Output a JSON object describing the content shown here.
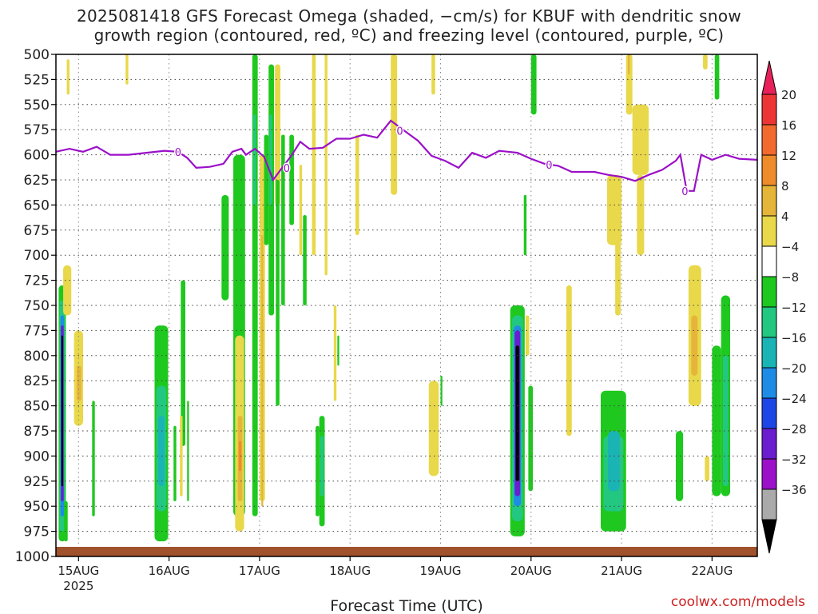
{
  "title": {
    "line1": "2025081418 GFS Forecast Omega (shaded, −cm/s) for KBUF with dendritic snow",
    "line2": "growth region (contoured, red, ºC) and freezing level (contoured, purple, ºC)"
  },
  "credit": "coolwx.com/models",
  "chart_data": {
    "type": "heatmap",
    "xlabel": "Forecast Time (UTC)",
    "ylabel": "",
    "x_range_days": [
      14.75,
      22.5
    ],
    "x_ticks": [
      {
        "day": 15,
        "label": "15AUG",
        "sub": "2025"
      },
      {
        "day": 16,
        "label": "16AUG",
        "sub": ""
      },
      {
        "day": 17,
        "label": "17AUG",
        "sub": ""
      },
      {
        "day": 18,
        "label": "18AUG",
        "sub": ""
      },
      {
        "day": 19,
        "label": "19AUG",
        "sub": ""
      },
      {
        "day": 20,
        "label": "20AUG",
        "sub": ""
      },
      {
        "day": 21,
        "label": "21AUG",
        "sub": ""
      },
      {
        "day": 22,
        "label": "22AUG",
        "sub": ""
      }
    ],
    "y_ticks": [
      500,
      525,
      550,
      575,
      600,
      625,
      650,
      675,
      700,
      725,
      750,
      775,
      800,
      825,
      850,
      875,
      900,
      925,
      950,
      975,
      1000
    ],
    "y_range": [
      500,
      1000
    ],
    "colorbar": {
      "labels": [
        "20",
        "16",
        "12",
        "8",
        "4",
        "−4",
        "−8",
        "−12",
        "−16",
        "−20",
        "−24",
        "−28",
        "−32",
        "−36"
      ],
      "colors": [
        "#e8205a",
        "#ee3535",
        "#f26a2e",
        "#ef8c2a",
        "#e5b53a",
        "#e8d84a",
        "#ffffff",
        "#1ec81e",
        "#22c880",
        "#1ab4b4",
        "#1e8ce6",
        "#1e46e6",
        "#6a1ecf",
        "#9b10c8",
        "#aaaaaa",
        "#000000"
      ]
    },
    "freezing_level": {
      "color": "#9b10c8",
      "label": "0",
      "points": [
        [
          14.75,
          597
        ],
        [
          14.9,
          594
        ],
        [
          15.05,
          597
        ],
        [
          15.2,
          592
        ],
        [
          15.35,
          600
        ],
        [
          15.55,
          600
        ],
        [
          15.75,
          598
        ],
        [
          15.95,
          596
        ],
        [
          16.1,
          597
        ],
        [
          16.2,
          603
        ],
        [
          16.3,
          613
        ],
        [
          16.45,
          612
        ],
        [
          16.6,
          609
        ],
        [
          16.7,
          597
        ],
        [
          16.8,
          594
        ],
        [
          16.85,
          600
        ],
        [
          16.95,
          594
        ],
        [
          17.05,
          602
        ],
        [
          17.15,
          625
        ],
        [
          17.25,
          613
        ],
        [
          17.35,
          601
        ],
        [
          17.45,
          587
        ],
        [
          17.55,
          594
        ],
        [
          17.7,
          593
        ],
        [
          17.85,
          584
        ],
        [
          18.0,
          584
        ],
        [
          18.15,
          580
        ],
        [
          18.3,
          583
        ],
        [
          18.45,
          566
        ],
        [
          18.6,
          576
        ],
        [
          18.75,
          586
        ],
        [
          18.9,
          601
        ],
        [
          19.05,
          606
        ],
        [
          19.2,
          613
        ],
        [
          19.35,
          598
        ],
        [
          19.5,
          603
        ],
        [
          19.65,
          596
        ],
        [
          19.85,
          598
        ],
        [
          20.0,
          604
        ],
        [
          20.15,
          609
        ],
        [
          20.3,
          611
        ],
        [
          20.45,
          617
        ],
        [
          20.7,
          617
        ],
        [
          20.85,
          620
        ],
        [
          21.0,
          622
        ],
        [
          21.15,
          626
        ],
        [
          21.3,
          620
        ],
        [
          21.45,
          615
        ],
        [
          21.6,
          606
        ],
        [
          21.65,
          600
        ],
        [
          21.72,
          636
        ],
        [
          21.8,
          636
        ],
        [
          21.88,
          600
        ],
        [
          22.0,
          605
        ],
        [
          22.15,
          600
        ],
        [
          22.3,
          604
        ],
        [
          22.5,
          605
        ]
      ]
    },
    "omega_regions": [
      {
        "x0": 14.78,
        "x1": 14.86,
        "p0": 730,
        "p1": 985,
        "value": -8
      },
      {
        "x0": 14.79,
        "x1": 14.85,
        "p0": 745,
        "p1": 975,
        "value": -12
      },
      {
        "x0": 14.8,
        "x1": 14.84,
        "p0": 760,
        "p1": 960,
        "value": -20
      },
      {
        "x0": 14.805,
        "x1": 14.835,
        "p0": 770,
        "p1": 945,
        "value": -28
      },
      {
        "x0": 14.81,
        "x1": 14.83,
        "p0": 780,
        "p1": 930,
        "value": -36
      },
      {
        "x0": 14.84,
        "x1": 14.88,
        "p0": 945,
        "p1": 985,
        "value": -8
      },
      {
        "x0": 14.83,
        "x1": 14.92,
        "p0": 710,
        "p1": 760,
        "value": 4
      },
      {
        "x0": 14.95,
        "x1": 15.05,
        "p0": 775,
        "p1": 870,
        "value": 4
      },
      {
        "x0": 14.98,
        "x1": 15.03,
        "p0": 810,
        "p1": 845,
        "value": 8
      },
      {
        "x0": 14.87,
        "x1": 14.9,
        "p0": 505,
        "p1": 540,
        "value": 4
      },
      {
        "x0": 15.15,
        "x1": 15.18,
        "p0": 845,
        "p1": 960,
        "value": -8
      },
      {
        "x0": 15.52,
        "x1": 15.55,
        "p0": 500,
        "p1": 530,
        "value": 4
      },
      {
        "x0": 15.84,
        "x1": 15.99,
        "p0": 770,
        "p1": 985,
        "value": -8
      },
      {
        "x0": 15.86,
        "x1": 15.97,
        "p0": 830,
        "p1": 955,
        "value": -12
      },
      {
        "x0": 15.88,
        "x1": 15.95,
        "p0": 860,
        "p1": 930,
        "value": -16
      },
      {
        "x0": 16.13,
        "x1": 16.18,
        "p0": 725,
        "p1": 890,
        "value": -8
      },
      {
        "x0": 16.12,
        "x1": 16.15,
        "p0": 860,
        "p1": 940,
        "value": 4
      },
      {
        "x0": 16.05,
        "x1": 16.08,
        "p0": 870,
        "p1": 945,
        "value": -8
      },
      {
        "x0": 16.2,
        "x1": 16.22,
        "p0": 845,
        "p1": 945,
        "value": -8
      },
      {
        "x0": 16.58,
        "x1": 16.66,
        "p0": 640,
        "p1": 745,
        "value": -8
      },
      {
        "x0": 16.71,
        "x1": 16.84,
        "p0": 600,
        "p1": 960,
        "value": -8
      },
      {
        "x0": 16.73,
        "x1": 16.83,
        "p0": 780,
        "p1": 975,
        "value": 4
      },
      {
        "x0": 16.76,
        "x1": 16.81,
        "p0": 860,
        "p1": 945,
        "value": 8
      },
      {
        "x0": 16.77,
        "x1": 16.8,
        "p0": 885,
        "p1": 915,
        "value": 12
      },
      {
        "x0": 16.92,
        "x1": 16.98,
        "p0": 500,
        "p1": 960,
        "value": -8
      },
      {
        "x0": 16.93,
        "x1": 16.96,
        "p0": 560,
        "p1": 650,
        "value": -12
      },
      {
        "x0": 17.0,
        "x1": 17.06,
        "p0": 600,
        "p1": 945,
        "value": 4
      },
      {
        "x0": 17.02,
        "x1": 17.04,
        "p0": 680,
        "p1": 950,
        "value": 8
      },
      {
        "x0": 17.05,
        "x1": 17.1,
        "p0": 580,
        "p1": 690,
        "value": -8
      },
      {
        "x0": 17.1,
        "x1": 17.16,
        "p0": 510,
        "p1": 760,
        "value": -8
      },
      {
        "x0": 17.11,
        "x1": 17.14,
        "p0": 560,
        "p1": 650,
        "value": -12
      },
      {
        "x0": 17.17,
        "x1": 17.23,
        "p0": 510,
        "p1": 650,
        "value": 4
      },
      {
        "x0": 17.18,
        "x1": 17.22,
        "p0": 625,
        "p1": 850,
        "value": -8
      },
      {
        "x0": 17.24,
        "x1": 17.28,
        "p0": 580,
        "p1": 750,
        "value": -8
      },
      {
        "x0": 17.33,
        "x1": 17.38,
        "p0": 580,
        "p1": 670,
        "value": -8
      },
      {
        "x0": 17.44,
        "x1": 17.47,
        "p0": 610,
        "p1": 700,
        "value": 4
      },
      {
        "x0": 17.48,
        "x1": 17.52,
        "p0": 660,
        "p1": 750,
        "value": -8
      },
      {
        "x0": 17.58,
        "x1": 17.62,
        "p0": 500,
        "p1": 700,
        "value": 4
      },
      {
        "x0": 17.62,
        "x1": 17.66,
        "p0": 870,
        "p1": 960,
        "value": -8
      },
      {
        "x0": 17.66,
        "x1": 17.72,
        "p0": 860,
        "p1": 970,
        "value": -8
      },
      {
        "x0": 17.67,
        "x1": 17.71,
        "p0": 880,
        "p1": 940,
        "value": -12
      },
      {
        "x0": 17.72,
        "x1": 17.75,
        "p0": 500,
        "p1": 720,
        "value": 4
      },
      {
        "x0": 17.82,
        "x1": 17.85,
        "p0": 750,
        "p1": 845,
        "value": 4
      },
      {
        "x0": 17.86,
        "x1": 17.88,
        "p0": 780,
        "p1": 810,
        "value": -8
      },
      {
        "x0": 18.06,
        "x1": 18.1,
        "p0": 580,
        "p1": 680,
        "value": 4
      },
      {
        "x0": 18.45,
        "x1": 18.52,
        "p0": 500,
        "p1": 640,
        "value": 4
      },
      {
        "x0": 18.9,
        "x1": 18.94,
        "p0": 500,
        "p1": 540,
        "value": 4
      },
      {
        "x0": 18.87,
        "x1": 18.98,
        "p0": 825,
        "p1": 920,
        "value": 4
      },
      {
        "x0": 19.0,
        "x1": 19.02,
        "p0": 820,
        "p1": 850,
        "value": -8
      },
      {
        "x0": 19.77,
        "x1": 19.93,
        "p0": 750,
        "p1": 980,
        "value": -8
      },
      {
        "x0": 19.79,
        "x1": 19.91,
        "p0": 760,
        "p1": 965,
        "value": -12
      },
      {
        "x0": 19.81,
        "x1": 19.89,
        "p0": 770,
        "p1": 950,
        "value": -20
      },
      {
        "x0": 19.82,
        "x1": 19.88,
        "p0": 775,
        "p1": 940,
        "value": -28
      },
      {
        "x0": 19.83,
        "x1": 19.87,
        "p0": 790,
        "p1": 925,
        "value": -36
      },
      {
        "x0": 19.94,
        "x1": 19.98,
        "p0": 760,
        "p1": 800,
        "value": 4
      },
      {
        "x0": 19.92,
        "x1": 19.95,
        "p0": 640,
        "p1": 700,
        "value": -8
      },
      {
        "x0": 20.0,
        "x1": 20.06,
        "p0": 500,
        "p1": 560,
        "value": -8
      },
      {
        "x0": 19.97,
        "x1": 20.02,
        "p0": 830,
        "p1": 935,
        "value": -8
      },
      {
        "x0": 20.39,
        "x1": 20.45,
        "p0": 730,
        "p1": 880,
        "value": 4
      },
      {
        "x0": 20.77,
        "x1": 21.05,
        "p0": 835,
        "p1": 975,
        "value": -8
      },
      {
        "x0": 20.8,
        "x1": 21.02,
        "p0": 880,
        "p1": 955,
        "value": -12
      },
      {
        "x0": 20.85,
        "x1": 20.98,
        "p0": 875,
        "p1": 935,
        "value": -16
      },
      {
        "x0": 20.84,
        "x1": 21.0,
        "p0": 620,
        "p1": 690,
        "value": 4
      },
      {
        "x0": 20.93,
        "x1": 20.99,
        "p0": 665,
        "p1": 760,
        "value": 4
      },
      {
        "x0": 21.05,
        "x1": 21.12,
        "p0": 500,
        "p1": 560,
        "value": 4
      },
      {
        "x0": 21.07,
        "x1": 21.09,
        "p0": 500,
        "p1": 520,
        "value": 8
      },
      {
        "x0": 21.12,
        "x1": 21.3,
        "p0": 550,
        "p1": 620,
        "value": 4
      },
      {
        "x0": 21.17,
        "x1": 21.25,
        "p0": 620,
        "p1": 700,
        "value": 4
      },
      {
        "x0": 21.6,
        "x1": 21.68,
        "p0": 875,
        "p1": 945,
        "value": -8
      },
      {
        "x0": 21.74,
        "x1": 21.88,
        "p0": 710,
        "p1": 850,
        "value": 4
      },
      {
        "x0": 21.77,
        "x1": 21.84,
        "p0": 760,
        "p1": 820,
        "value": 8
      },
      {
        "x0": 21.9,
        "x1": 21.95,
        "p0": 500,
        "p1": 515,
        "value": 4
      },
      {
        "x0": 21.92,
        "x1": 21.97,
        "p0": 900,
        "p1": 925,
        "value": 4
      },
      {
        "x0": 22.0,
        "x1": 22.1,
        "p0": 790,
        "p1": 940,
        "value": -8
      },
      {
        "x0": 22.1,
        "x1": 22.2,
        "p0": 740,
        "p1": 940,
        "value": -8
      },
      {
        "x0": 22.12,
        "x1": 22.18,
        "p0": 800,
        "p1": 930,
        "value": -12
      },
      {
        "x0": 22.03,
        "x1": 22.08,
        "p0": 500,
        "p1": 545,
        "value": -8
      }
    ]
  }
}
